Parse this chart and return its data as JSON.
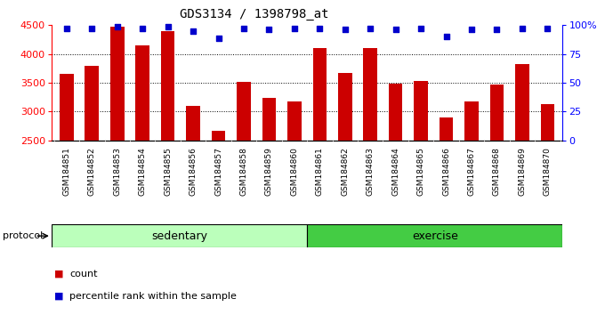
{
  "title": "GDS3134 / 1398798_at",
  "samples": [
    "GSM184851",
    "GSM184852",
    "GSM184853",
    "GSM184854",
    "GSM184855",
    "GSM184856",
    "GSM184857",
    "GSM184858",
    "GSM184859",
    "GSM184860",
    "GSM184861",
    "GSM184862",
    "GSM184863",
    "GSM184864",
    "GSM184865",
    "GSM184866",
    "GSM184867",
    "GSM184868",
    "GSM184869",
    "GSM184870"
  ],
  "values": [
    3650,
    3800,
    4480,
    4150,
    4400,
    3100,
    2670,
    3520,
    3240,
    3180,
    4100,
    3670,
    4100,
    3490,
    3530,
    2890,
    3180,
    3470,
    3820,
    3120
  ],
  "percentile": [
    97,
    97,
    99,
    97,
    99,
    95,
    89,
    97,
    96,
    97,
    97,
    96,
    97,
    96,
    97,
    90,
    96,
    96,
    97,
    97
  ],
  "bar_color": "#cc0000",
  "dot_color": "#0000cc",
  "ylim_left": [
    2500,
    4500
  ],
  "yticks_left": [
    2500,
    3000,
    3500,
    4000,
    4500
  ],
  "ylim_right": [
    0,
    100
  ],
  "yticks_right": [
    0,
    25,
    50,
    75,
    100
  ],
  "grid_values": [
    3000,
    3500,
    4000
  ],
  "sedentary_color": "#bbffbb",
  "exercise_color": "#44cc44",
  "protocol_label": "protocol",
  "sedentary_label": "sedentary",
  "exercise_label": "exercise",
  "legend_count_label": "count",
  "legend_pct_label": "percentile rank within the sample",
  "bar_width": 0.55,
  "tick_label_size": 6.5,
  "title_fontsize": 10,
  "n_sedentary": 10,
  "n_exercise": 10
}
